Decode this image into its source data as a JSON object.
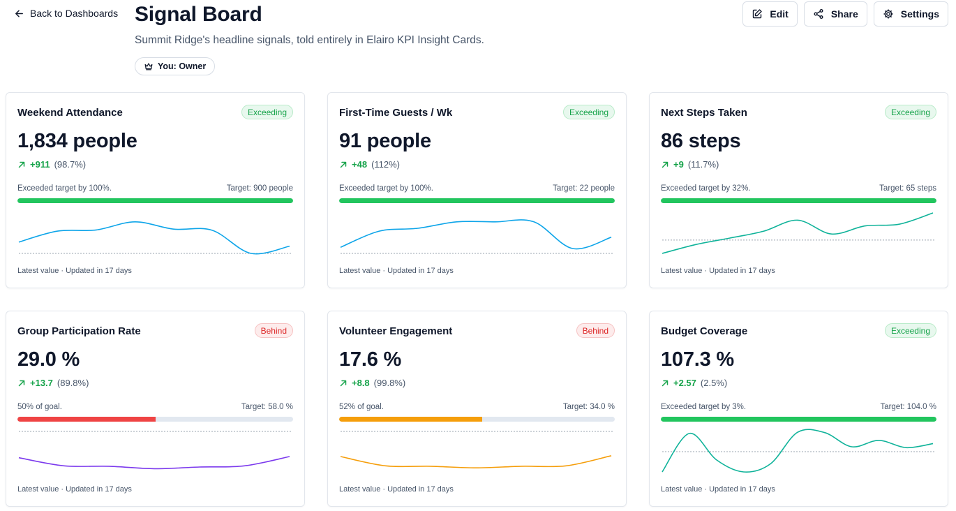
{
  "header": {
    "back_label": "Back to Dashboards",
    "title": "Signal Board",
    "subtitle": "Summit Ridge's headline signals, told entirely in Elairo KPI Insight Cards.",
    "owner_badge": "You: Owner",
    "actions": {
      "edit": "Edit",
      "share": "Share",
      "settings": "Settings"
    }
  },
  "colors": {
    "good": "#22c55e",
    "bad": "#ef4444",
    "warn": "#f59e0b",
    "sky": "#0ea5e9",
    "teal": "#10b39a",
    "violet": "#7c3aed"
  },
  "cards": [
    {
      "title": "Weekend Attendance",
      "status": "Exceeding",
      "status_kind": "good",
      "value": "1,834 people",
      "delta": "+911",
      "delta_pct": "(98.7%)",
      "progress_note": "Exceeded target by 100%.",
      "target": "Target: 900 people",
      "progress": 1.0,
      "progress_color": "#22c55e",
      "line_color": "#0ea5e9",
      "spark": [
        0.28,
        0.55,
        0.58,
        0.78,
        0.6,
        0.57,
        0.0,
        0.18
      ],
      "baseline": 0.0,
      "footnote": "Latest value · Updated in 17 days"
    },
    {
      "title": "First-Time Guests / Wk",
      "status": "Exceeding",
      "status_kind": "good",
      "value": "91 people",
      "delta": "+48",
      "delta_pct": "(112%)",
      "progress_note": "Exceeded target by 100%.",
      "target": "Target: 22 people",
      "progress": 1.0,
      "progress_color": "#22c55e",
      "line_color": "#0ea5e9",
      "spark": [
        0.15,
        0.55,
        0.62,
        0.78,
        0.78,
        0.78,
        0.12,
        0.4
      ],
      "baseline": 0.0,
      "footnote": "Latest value · Updated in 17 days"
    },
    {
      "title": "Next Steps Taken",
      "status": "Exceeding",
      "status_kind": "good",
      "value": "86 steps",
      "delta": "+9",
      "delta_pct": "(11.7%)",
      "progress_note": "Exceeded target by 32%.",
      "target": "Target: 65 steps",
      "progress": 1.0,
      "progress_color": "#22c55e",
      "line_color": "#10b39a",
      "spark": [
        0.0,
        0.22,
        0.38,
        0.55,
        0.82,
        0.48,
        0.68,
        0.72,
        1.0
      ],
      "baseline": 0.33,
      "footnote": "Latest value · Updated in 17 days"
    },
    {
      "title": "Group Participation Rate",
      "status": "Behind",
      "status_kind": "bad",
      "value": "29.0 %",
      "delta": "+13.7",
      "delta_pct": "(89.8%)",
      "progress_note": "50% of goal.",
      "target": "Target: 58.0 %",
      "progress": 0.5,
      "progress_color": "#ef4444",
      "line_color": "#7c3aed",
      "spark": [
        0.35,
        0.15,
        0.14,
        0.08,
        0.12,
        0.15,
        0.38
      ],
      "baseline": 1.0,
      "footnote": "Latest value · Updated in 17 days"
    },
    {
      "title": "Volunteer Engagement",
      "status": "Behind",
      "status_kind": "bad",
      "value": "17.6 %",
      "delta": "+8.8",
      "delta_pct": "(99.8%)",
      "progress_note": "52% of goal.",
      "target": "Target: 34.0 %",
      "progress": 0.52,
      "progress_color": "#f59e0b",
      "line_color": "#f59e0b",
      "spark": [
        0.38,
        0.15,
        0.14,
        0.1,
        0.14,
        0.15,
        0.4
      ],
      "baseline": 1.0,
      "footnote": "Latest value · Updated in 17 days"
    },
    {
      "title": "Budget Coverage",
      "status": "Exceeding",
      "status_kind": "good",
      "value": "107.3 %",
      "delta": "+2.57",
      "delta_pct": "(2.5%)",
      "progress_note": "Exceeded target by 3%.",
      "target": "Target: 104.0 %",
      "progress": 1.0,
      "progress_color": "#22c55e",
      "line_color": "#10b39a",
      "spark": [
        0.0,
        0.95,
        0.3,
        0.0,
        0.2,
        0.98,
        0.97,
        0.62,
        0.78,
        0.6,
        0.7
      ],
      "baseline": 0.5,
      "footnote": "Latest value · Updated in 17 days"
    }
  ]
}
